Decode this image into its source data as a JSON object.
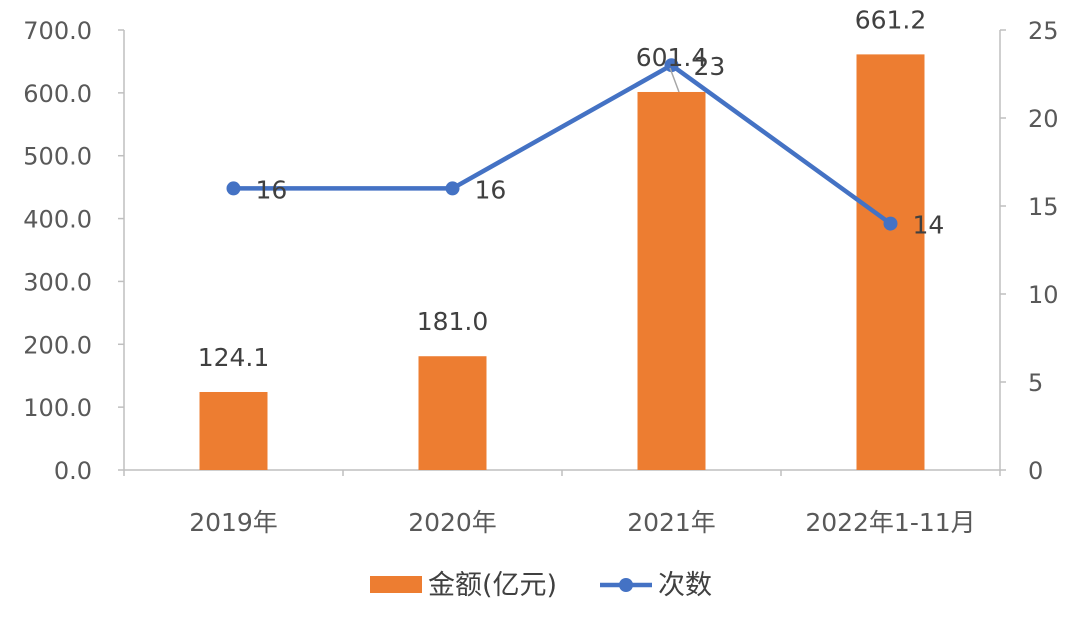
{
  "chart_data": {
    "type": "bar",
    "categories": [
      "2019年",
      "2020年",
      "2021年",
      "2022年1-11月"
    ],
    "series": [
      {
        "name": "金额(亿元)",
        "type": "bar",
        "axis": "left",
        "color": "#ED7D31",
        "values": [
          124.1,
          181.0,
          601.4,
          661.2
        ],
        "labels": [
          "124.1",
          "181.0",
          "601.4",
          "661.2"
        ]
      },
      {
        "name": "次数",
        "type": "line",
        "axis": "right",
        "color": "#4472C4",
        "values": [
          16,
          16,
          23,
          14
        ],
        "labels": [
          "16",
          "16",
          "23",
          "14"
        ]
      }
    ],
    "y_left": {
      "ylim": [
        0,
        700
      ],
      "ticks": [
        0,
        100,
        200,
        300,
        400,
        500,
        600,
        700
      ],
      "tick_labels": [
        "0.0",
        "100.0",
        "200.0",
        "300.0",
        "400.0",
        "500.0",
        "600.0",
        "700.0"
      ]
    },
    "y_right": {
      "ylim": [
        0,
        25
      ],
      "ticks": [
        0,
        5,
        10,
        15,
        20,
        25
      ],
      "tick_labels": [
        "0",
        "5",
        "10",
        "15",
        "20",
        "25"
      ]
    },
    "grid": false,
    "legend_position": "bottom"
  }
}
